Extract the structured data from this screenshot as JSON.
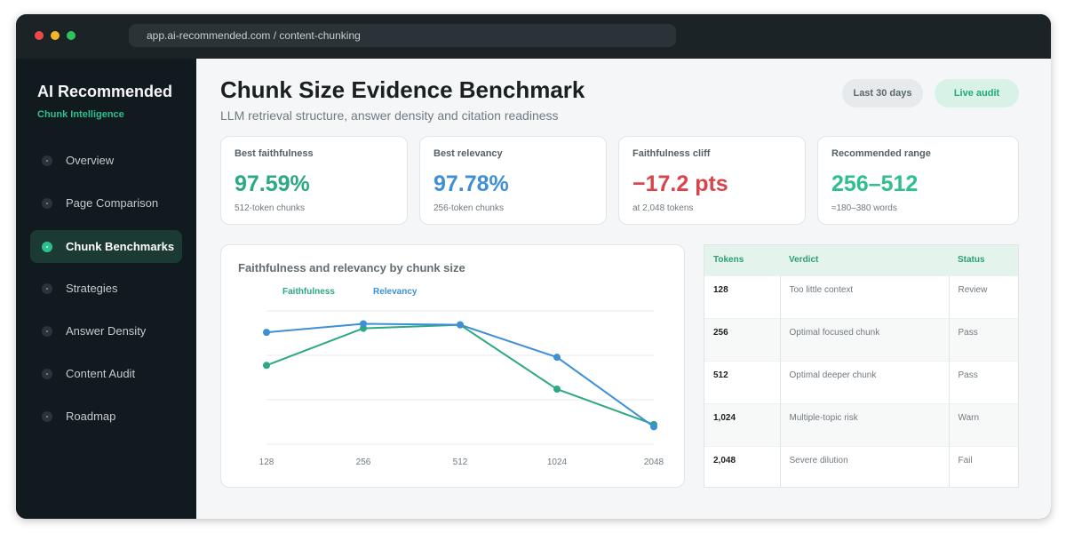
{
  "browser": {
    "url": "app.ai-recommended.com / content-chunking"
  },
  "sidebar": {
    "brand": "AI Recommended",
    "subtitle": "Chunk Intelligence",
    "items": [
      {
        "label": "Overview"
      },
      {
        "label": "Page Comparison"
      },
      {
        "label": "Chunk Benchmarks",
        "active": true
      },
      {
        "label": "Strategies"
      },
      {
        "label": "Answer Density"
      },
      {
        "label": "Content Audit"
      },
      {
        "label": "Roadmap"
      }
    ]
  },
  "header": {
    "title": "Chunk Size Evidence Benchmark",
    "subtitle": "LLM retrieval structure, answer density and citation readiness",
    "range_label": "Last 30 days",
    "live_label": "Live audit"
  },
  "colors": {
    "green": "#2ba884",
    "blue": "#3f8fd4",
    "red": "#d9434b",
    "accent": "#2fbf8f"
  },
  "cards": [
    {
      "label": "Best faithfulness",
      "value": "97.59%",
      "note": "512-token chunks",
      "color": "#2ba884"
    },
    {
      "label": "Best relevancy",
      "value": "97.78%",
      "note": "256-token chunks",
      "color": "#3f8fd4"
    },
    {
      "label": "Faithfulness cliff",
      "value": "−17.2 pts",
      "note": "at 2,048 tokens",
      "color": "#d9434b"
    },
    {
      "label": "Recommended range",
      "value": "256–512",
      "note": "≈180–380 words",
      "color": "#2fbf8f"
    }
  ],
  "chart_data": {
    "type": "line",
    "title": "Faithfulness and relevancy by chunk size",
    "categories": [
      "128",
      "256",
      "512",
      "1024",
      "2048"
    ],
    "series": [
      {
        "name": "Faithfulness",
        "values": [
          90.6,
          97.0,
          97.59,
          86.5,
          80.4
        ],
        "color": "#2ba884"
      },
      {
        "name": "Relevancy",
        "values": [
          96.3,
          97.78,
          97.6,
          92.0,
          80.0
        ],
        "color": "#3f8fd4"
      }
    ],
    "xlabel": "",
    "ylabel": "",
    "grid": true
  },
  "table": {
    "headers": [
      "Tokens",
      "Verdict",
      "Status"
    ],
    "rows": [
      {
        "tokens": "128",
        "verdict": "Too little context",
        "status": "Review"
      },
      {
        "tokens": "256",
        "verdict": "Optimal focused chunk",
        "status": "Pass"
      },
      {
        "tokens": "512",
        "verdict": "Optimal deeper chunk",
        "status": "Pass"
      },
      {
        "tokens": "1,024",
        "verdict": "Multiple-topic risk",
        "status": "Warn"
      },
      {
        "tokens": "2,048",
        "verdict": "Severe dilution",
        "status": "Fail"
      }
    ]
  }
}
